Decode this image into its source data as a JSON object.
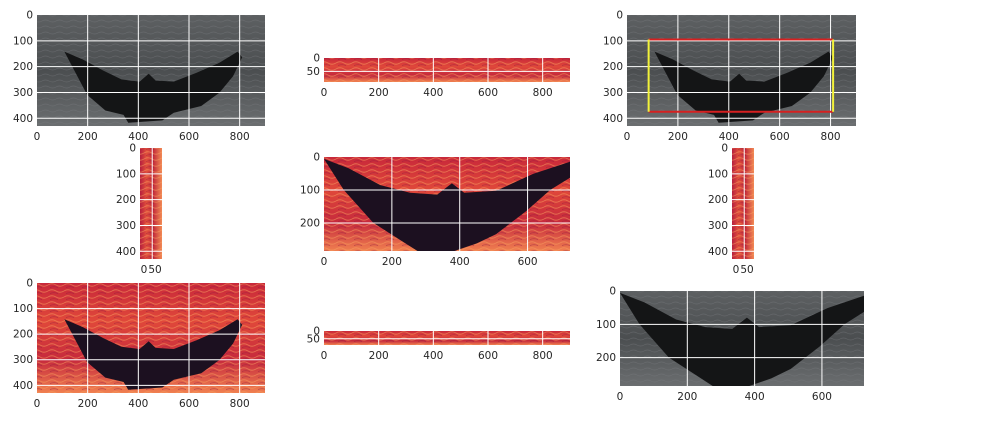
{
  "chart_data": [
    {
      "type": "image",
      "name": "grayscale-full",
      "colormap": "gray",
      "xticks": [
        "0",
        "200",
        "400",
        "600",
        "800"
      ],
      "yticks": [
        "0",
        "100",
        "200",
        "300",
        "400"
      ],
      "xlim": [
        0,
        900
      ],
      "ylim": [
        430,
        0
      ]
    },
    {
      "type": "image",
      "name": "magma-strip-top",
      "colormap": "magma",
      "xticks": [
        "0",
        "200",
        "400",
        "600",
        "800"
      ],
      "yticks": [
        "0",
        "50"
      ],
      "xlim": [
        0,
        900
      ],
      "ylim": [
        90,
        0
      ]
    },
    {
      "type": "image",
      "name": "grayscale-with-bbox",
      "colormap": "gray",
      "xticks": [
        "0",
        "200",
        "400",
        "600",
        "800"
      ],
      "yticks": [
        "0",
        "100",
        "200",
        "300",
        "400"
      ],
      "xlim": [
        0,
        900
      ],
      "ylim": [
        430,
        0
      ],
      "bbox": {
        "x0": 85,
        "x1": 810,
        "y0": 95,
        "y1": 375,
        "side_color": "#f2f23a",
        "edge_color": "#d62020"
      }
    },
    {
      "type": "image",
      "name": "magma-strip-left",
      "colormap": "magma",
      "xticks": [
        "0",
        "50"
      ],
      "yticks": [
        "0",
        "100",
        "200",
        "300",
        "400"
      ],
      "xlim": [
        0,
        90
      ],
      "ylim": [
        430,
        0
      ]
    },
    {
      "type": "image",
      "name": "magma-crop",
      "colormap": "magma",
      "xticks": [
        "0",
        "200",
        "400",
        "600"
      ],
      "yticks": [
        "0",
        "100",
        "200"
      ],
      "xlim": [
        0,
        725
      ],
      "ylim": [
        285,
        0
      ]
    },
    {
      "type": "image",
      "name": "magma-strip-right",
      "colormap": "magma",
      "xticks": [
        "0",
        "50"
      ],
      "yticks": [
        "0",
        "100",
        "200",
        "300",
        "400"
      ],
      "xlim": [
        0,
        90
      ],
      "ylim": [
        430,
        0
      ]
    },
    {
      "type": "image",
      "name": "magma-full",
      "colormap": "magma",
      "xticks": [
        "0",
        "200",
        "400",
        "600",
        "800"
      ],
      "yticks": [
        "0",
        "100",
        "200",
        "300",
        "400"
      ],
      "xlim": [
        0,
        900
      ],
      "ylim": [
        430,
        0
      ]
    },
    {
      "type": "image",
      "name": "magma-strip-bottom",
      "colormap": "magma",
      "xticks": [
        "0",
        "200",
        "400",
        "600",
        "800"
      ],
      "yticks": [
        "0",
        "50"
      ],
      "xlim": [
        0,
        900
      ],
      "ylim": [
        90,
        0
      ]
    },
    {
      "type": "image",
      "name": "grayscale-crop",
      "colormap": "gray",
      "xticks": [
        "0",
        "200",
        "400",
        "600"
      ],
      "yticks": [
        "0",
        "100",
        "200"
      ],
      "xlim": [
        0,
        725
      ],
      "ylim": [
        285,
        0
      ]
    }
  ]
}
